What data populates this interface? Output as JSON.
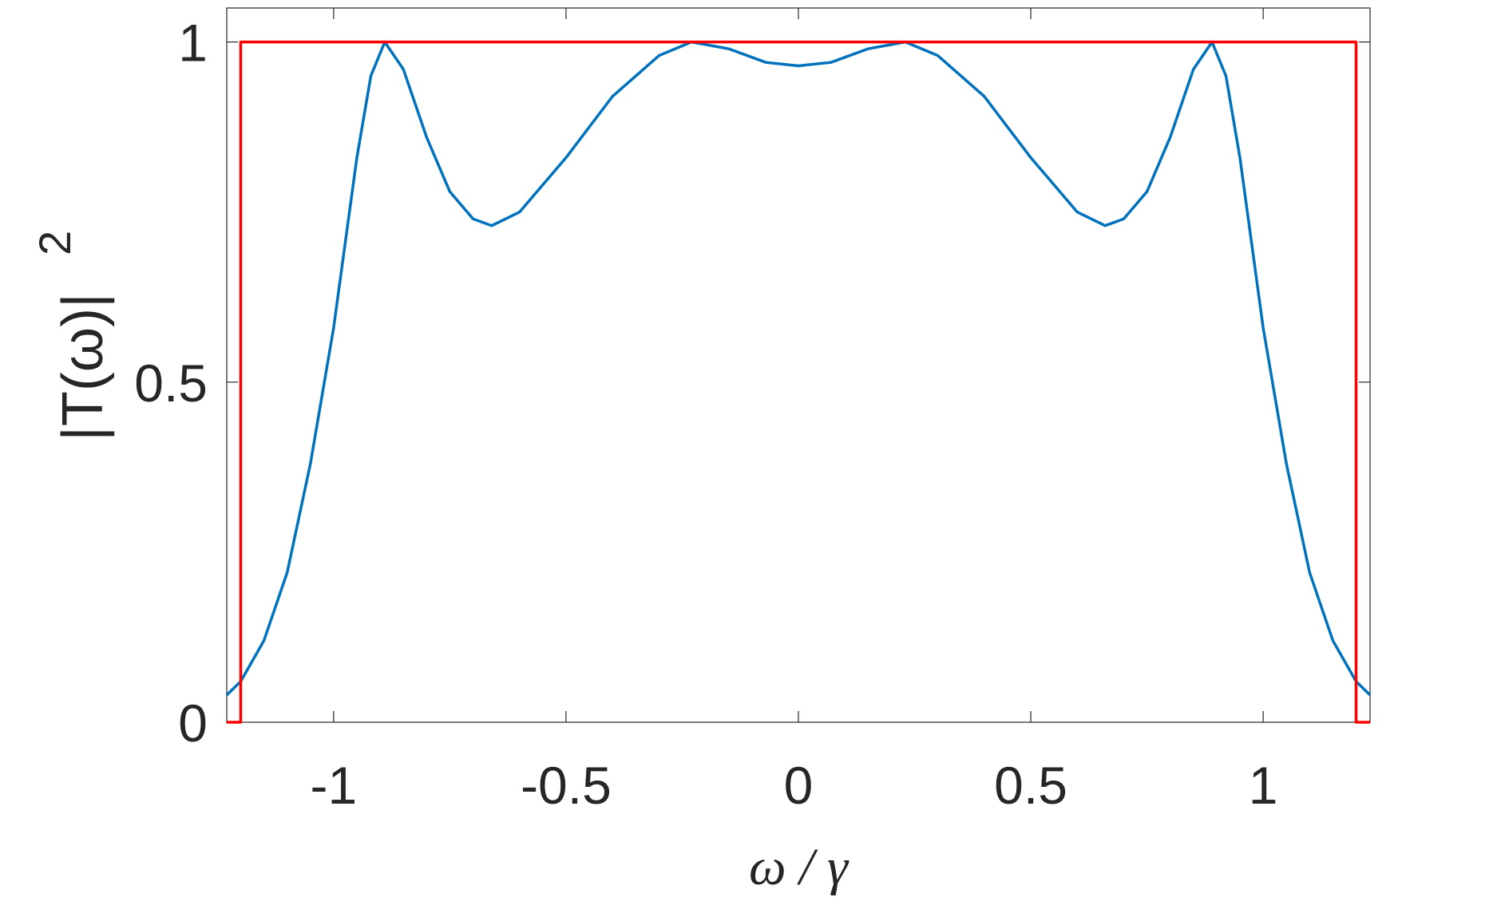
{
  "chart_data": {
    "type": "line",
    "xlabel": "ω / γ",
    "ylabel": {
      "text": "|T(ω)|",
      "superscript": "2"
    },
    "xlim": [
      -1.23,
      1.23
    ],
    "ylim": [
      0,
      1.05
    ],
    "xticks": [
      -1,
      -0.5,
      0,
      0.5,
      1
    ],
    "yticks": [
      0,
      0.5,
      1
    ],
    "grid": false,
    "series": [
      {
        "color": "#0072bd",
        "x": [
          -1.23,
          -1.2,
          -1.15,
          -1.1,
          -1.05,
          -1.0,
          -0.95,
          -0.92,
          -0.89,
          -0.85,
          -0.8,
          -0.75,
          -0.7,
          -0.66,
          -0.6,
          -0.5,
          -0.4,
          -0.3,
          -0.23,
          -0.15,
          -0.07,
          0,
          0.07,
          0.15,
          0.23,
          0.3,
          0.4,
          0.5,
          0.6,
          0.66,
          0.7,
          0.75,
          0.8,
          0.85,
          0.89,
          0.92,
          0.95,
          1.0,
          1.05,
          1.1,
          1.15,
          1.2,
          1.23
        ],
        "values": [
          0.04,
          0.06,
          0.12,
          0.22,
          0.38,
          0.58,
          0.83,
          0.95,
          1.0,
          0.96,
          0.86,
          0.78,
          0.74,
          0.73,
          0.75,
          0.83,
          0.92,
          0.98,
          1.0,
          0.99,
          0.97,
          0.965,
          0.97,
          0.99,
          1.0,
          0.98,
          0.92,
          0.83,
          0.75,
          0.73,
          0.74,
          0.78,
          0.86,
          0.96,
          1.0,
          0.95,
          0.83,
          0.58,
          0.38,
          0.22,
          0.12,
          0.06,
          0.04
        ]
      },
      {
        "color": "#ff0000",
        "x": [
          -1.23,
          -1.2,
          -1.2,
          1.2,
          1.2,
          1.23
        ],
        "values": [
          0,
          0,
          1,
          1,
          0,
          0
        ]
      }
    ]
  }
}
